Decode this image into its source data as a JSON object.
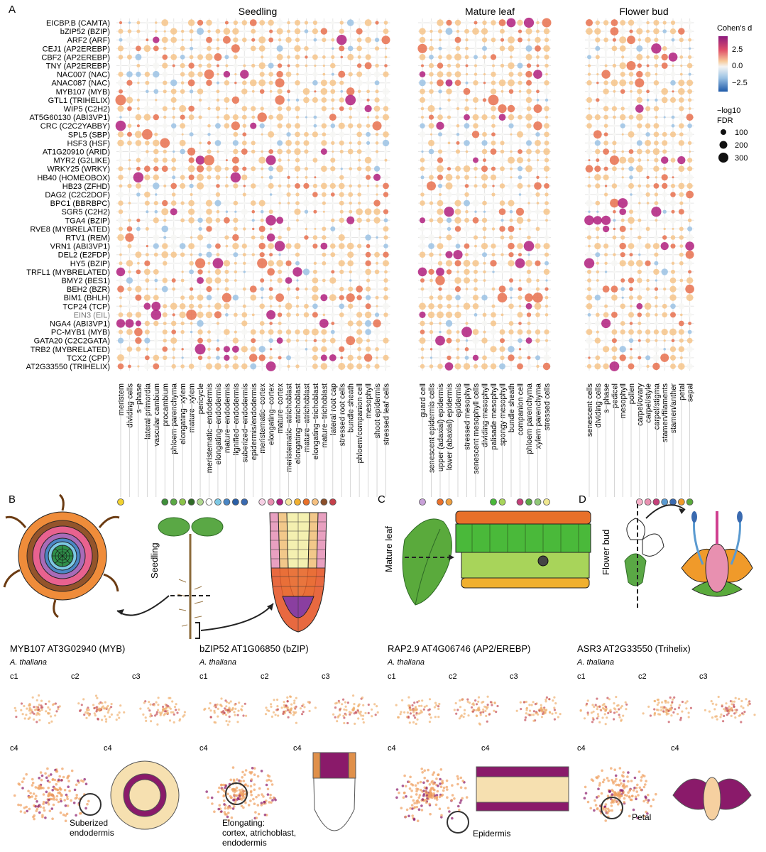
{
  "panel_letters": {
    "a": "A",
    "b": "B",
    "c": "C",
    "d": "D"
  },
  "panel_a": {
    "tissue_titles": {
      "seedling": "Seedling",
      "mature_leaf": "Mature leaf",
      "flower_bud": "Flower bud"
    },
    "genes": [
      "EICBP.B (CAMTA)",
      "bZIP52 (BZIP)",
      "ARF2 (ARF)",
      "CEJ1 (AP2EREBP)",
      "CBF2 (AP2EREBP)",
      "TNY (AP2EREBP)",
      "NAC007 (NAC)",
      "ANAC087 (NAC)",
      "MYB107 (MYB)",
      "GTL1 (TRIHELIX)",
      "WIP5 (C2H2)",
      "AT5G60130 (ABI3VP1)",
      "CRC (C2C2YABBY)",
      "SPL5 (SBP)",
      "HSF3 (HSF)",
      "AT1G20910 (ARID)",
      "MYR2 (G2LIKE)",
      "WRKY25 (WRKY)",
      "HB40 (HOMEOBOX)",
      "HB23 (ZFHD)",
      "DAG2 (C2C2DOF)",
      "BPC1 (BBRBPC)",
      "SGR5 (C2H2)",
      "TGA4 (BZIP)",
      "RVE8 (MYBRELATED)",
      "RTV1 (REM)",
      "VRN1 (ABI3VP1)",
      "DEL2 (E2FDP)",
      "HY5 (BZIP)",
      "TRFL1 (MYBRELATED)",
      "BMY2 (BES1)",
      "BEH2 (BZR)",
      "BIM1 (BHLH)",
      "TCP24 (TCP)",
      "EIN3 (EIL)",
      "NGA4 (ABI3VP1)",
      "PC-MYB1 (MYB)",
      "GATA20 (C2C2GATA)",
      "TRB2 (MYBRELATED)",
      "TCX2 (CPP)",
      "AT2G33550 (TRIHELIX)"
    ],
    "seedling_cells": [
      "meristem",
      "dividing cells",
      "s−phase",
      "lateral primordia",
      "vascular cambium",
      "procambium",
      "phloem parenchyma",
      "elongating−xylem",
      "mature−xylem",
      "pericycle",
      "meristematic−endodermis",
      "elongating−endodermis",
      "mature−endodermis",
      "lignified−endodermis",
      "suberized−endodermis",
      "epidermis/endodermis",
      "meristematic−cortex",
      "elongating−cortex",
      "mature−cortex",
      "meristematic−atrichoblast",
      "elongating−atrichoblast",
      "mature−atrichoblast",
      "elongating−trichoblast",
      "mature−trichoblast",
      "lateral root cap",
      "stressed root cells",
      "bundle sheath",
      "phloem/companion cell",
      "mesophyll",
      "shoot epidermis",
      "stressed leaf cells"
    ],
    "leaf_cells": [
      "guard cell",
      "senescent epidermis cells",
      "upper (adaxial) epidermis",
      "lower (abaxial) epidermis",
      "epidermis",
      "stressed mesophyll",
      "senescent mesophyll cells",
      "dividing mesophyll",
      "palisade mesophyll",
      "spongy mesophyll",
      "bundle sheath",
      "companion cell",
      "phloem parenchyma",
      "xylem parenchyma",
      "stressed cells"
    ],
    "flower_cells": [
      "senescent cells",
      "dividing cells",
      "s−phase",
      "pedicel",
      "mesophyll",
      "pollen",
      "carpel/ovary",
      "carpel/style",
      "carpel/stigma",
      "stamen/filaments",
      "stamen/anther",
      "petal",
      "sepal"
    ],
    "legend": {
      "color_title": "Cohen's d",
      "color_ticks": [
        "2.5",
        "0.0",
        "−2.5"
      ],
      "size_title_1": "−log10",
      "size_title_2": "FDR",
      "size_ticks": [
        "100",
        "200",
        "300"
      ]
    },
    "colors": {
      "high": "#b01f7e",
      "mid_high": "#e8704e",
      "warm": "#f6c48a",
      "neutral": "#f7f7f5",
      "cool": "#9bc2e4",
      "low": "#2a5fa6"
    }
  },
  "panel_b_label": "Seedling",
  "panel_c_label": "Mature leaf",
  "panel_d_label": "Flower bud",
  "umap_panels": [
    {
      "title": "MYB107 AT3G02940 (MYB)",
      "species": "A. thaliana",
      "labels": [
        "c1",
        "c2",
        "c3",
        "c4",
        "c4"
      ],
      "annotation": "Suberized\nendodermis"
    },
    {
      "title": "bZIP52 AT1G06850 (bZIP)",
      "species": "A. thaliana",
      "labels": [
        "c1",
        "c2",
        "c3",
        "c4",
        "c4"
      ],
      "annotation": "Elongating:\ncortex, atrichoblast,\nendodermis"
    },
    {
      "title": "RAP2.9 AT4G06746 (AP2/EREBP)",
      "species": "A. thaliana",
      "labels": [
        "c1",
        "c2",
        "c3",
        "c4",
        "c4"
      ],
      "annotation": "Epidermis"
    },
    {
      "title": "ASR3 AT2G33550 (Trihelix)",
      "species": "A. thaliana",
      "labels": [
        "c1",
        "c2",
        "c3",
        "c4",
        "c4"
      ],
      "annotation": "Petal"
    }
  ]
}
